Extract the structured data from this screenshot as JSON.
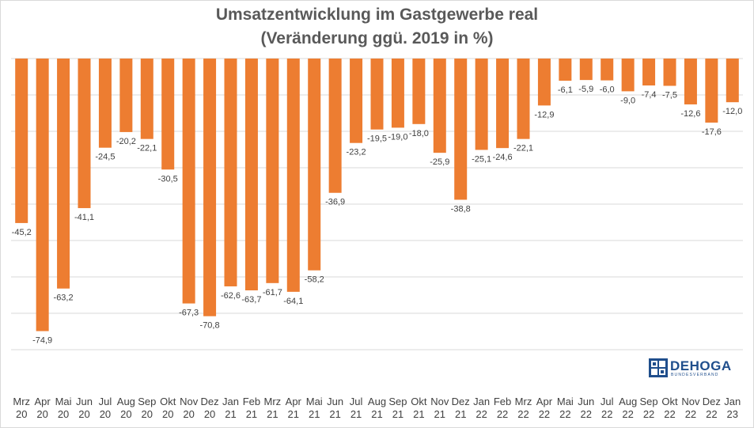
{
  "chart_data": {
    "type": "bar",
    "title": "Umsatzentwicklung im Gastgewerbe real",
    "subtitle": "(Veränderung ggü. 2019 in %)",
    "categories": [
      [
        "Mrz",
        "20"
      ],
      [
        "Apr",
        "20"
      ],
      [
        "Mai",
        "20"
      ],
      [
        "Jun",
        "20"
      ],
      [
        "Jul",
        "20"
      ],
      [
        "Aug",
        "20"
      ],
      [
        "Sep",
        "20"
      ],
      [
        "Okt",
        "20"
      ],
      [
        "Nov",
        "20"
      ],
      [
        "Dez",
        "20"
      ],
      [
        "Jan",
        "21"
      ],
      [
        "Feb",
        "21"
      ],
      [
        "Mrz",
        "21"
      ],
      [
        "Apr",
        "21"
      ],
      [
        "Mai",
        "21"
      ],
      [
        "Jun",
        "21"
      ],
      [
        "Jul",
        "21"
      ],
      [
        "Aug",
        "21"
      ],
      [
        "Sep",
        "21"
      ],
      [
        "Okt",
        "21"
      ],
      [
        "Nov",
        "21"
      ],
      [
        "Dez",
        "21"
      ],
      [
        "Jan",
        "22"
      ],
      [
        "Feb",
        "22"
      ],
      [
        "Mrz",
        "22"
      ],
      [
        "Apr",
        "22"
      ],
      [
        "Mai",
        "22"
      ],
      [
        "Jun",
        "22"
      ],
      [
        "Jul",
        "22"
      ],
      [
        "Aug",
        "22"
      ],
      [
        "Sep",
        "22"
      ],
      [
        "Okt",
        "22"
      ],
      [
        "Nov",
        "22"
      ],
      [
        "Dez",
        "22"
      ],
      [
        "Jan",
        "23"
      ]
    ],
    "values": [
      -45.2,
      -74.9,
      -63.2,
      -41.1,
      -24.5,
      -20.2,
      -22.1,
      -30.5,
      -67.3,
      -70.8,
      -62.6,
      -63.7,
      -61.7,
      -64.1,
      -58.2,
      -36.9,
      -23.2,
      -19.5,
      -19.0,
      -18.0,
      -25.9,
      -38.8,
      -25.1,
      -24.6,
      -22.1,
      -12.9,
      -6.1,
      -5.9,
      -6.0,
      -9.0,
      -7.4,
      -7.5,
      -12.6,
      -17.6,
      -12.0
    ],
    "labels": [
      "-45,2",
      "-74,9",
      "-63,2",
      "-41,1",
      "-24,5",
      "-20,2",
      "-22,1",
      "-30,5",
      "-67,3",
      "-70,8",
      "-62,6",
      "-63,7",
      "-61,7",
      "-64,1",
      "-58,2",
      "-36,9",
      "-23,2",
      "-19,5",
      "-19,0",
      "-18,0",
      "-25,9",
      "-38,8",
      "-25,1",
      "-24,6",
      "-22,1",
      "-12,9",
      "-6,1",
      "-5,9",
      "-6,0",
      "-9,0",
      "-7,4",
      "-7,5",
      "-12,6",
      "-17,6",
      "-12,0"
    ],
    "ylim": [
      -80,
      0
    ],
    "grid": true,
    "colors": {
      "bar": "#ed7d31",
      "grid": "#d9d9d9",
      "label": "#404040",
      "axis_text": "#404040"
    }
  },
  "logo": {
    "name": "DEHOGA",
    "subtitle": "BUNDESVERBAND",
    "color": "#1f4e8c"
  }
}
